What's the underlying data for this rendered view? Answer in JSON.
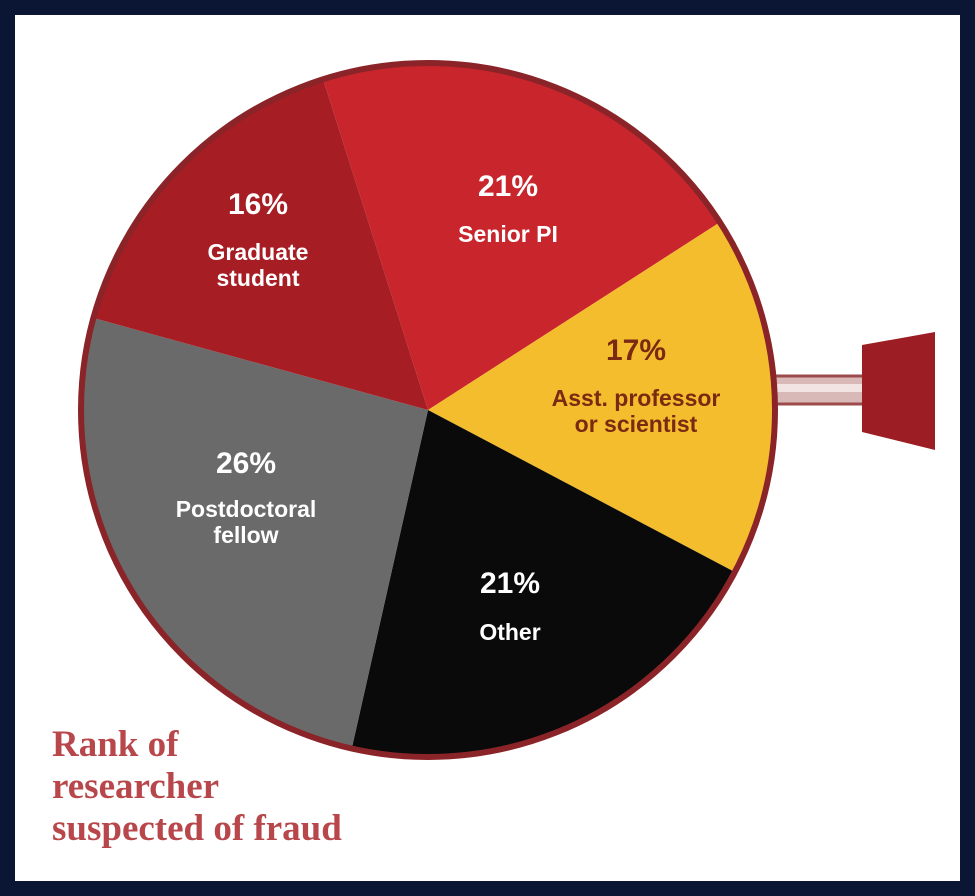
{
  "chart_data": {
    "type": "pie",
    "title": "Rank of\nresearcher\nsuspected of fraud",
    "categories": [
      "Senior PI",
      "Asst. professor or scientist",
      "Other",
      "Postdoctoral fellow",
      "Graduate student"
    ],
    "values": [
      21,
      17,
      21,
      26,
      16
    ],
    "value_labels": [
      "21%",
      "17%",
      "21%",
      "26%",
      "16%"
    ],
    "colors": [
      "#c8252c",
      "#f4bd2e",
      "#0a0a0a",
      "#6a6a6b",
      "#a61d24"
    ]
  }
}
